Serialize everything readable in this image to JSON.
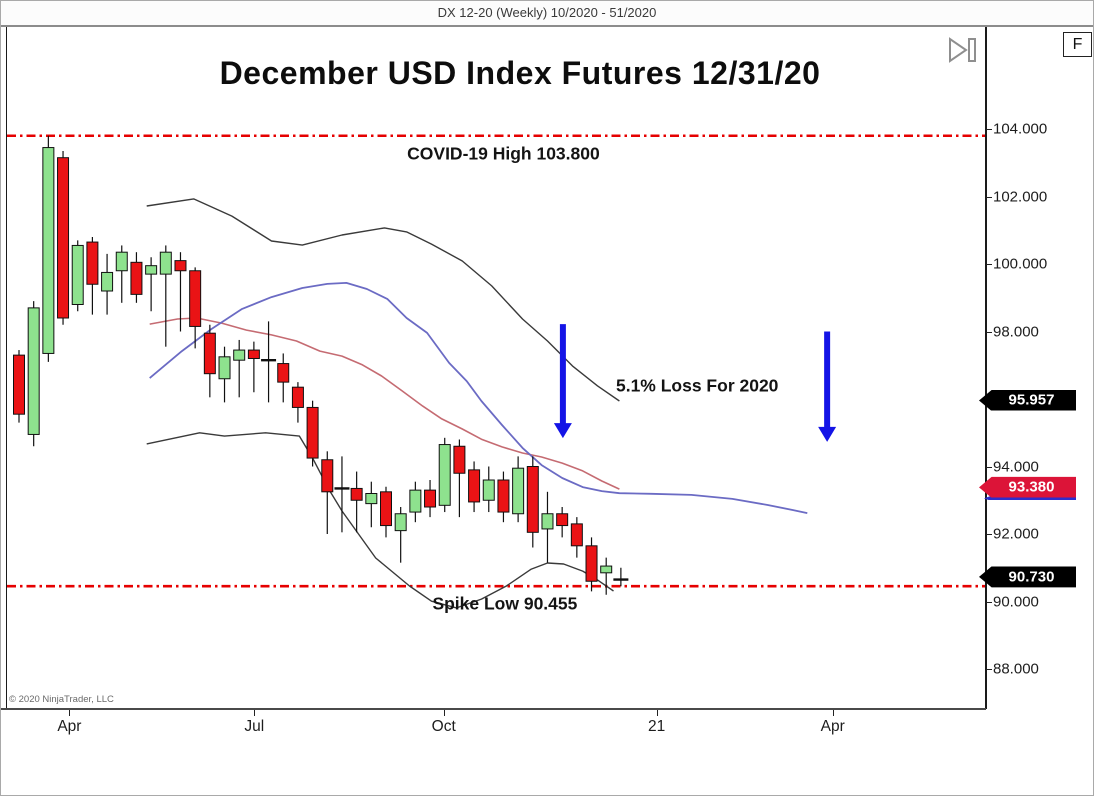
{
  "window_header": "DX 12-20 (Weekly)  10/2020 - 51/2020",
  "toolbar": {
    "f_button_label": "F",
    "step_icon": "play-step-icon"
  },
  "copyright": "© 2020 NinjaTrader, LLC",
  "colors": {
    "candle_up": "#8ee28e",
    "candle_down": "#ea1315",
    "candle_border": "#101010",
    "band_line": "#3a3a3a",
    "sma_fast": "#c56b72",
    "sma_slow": "#6b6bc4",
    "alert_line": "#e60000",
    "arrow": "#1414e6",
    "badge_black": "#000000",
    "badge_red": "#dc1438",
    "badge_text": "#ffffff",
    "badge_blue_underline": "#2d2dcc"
  },
  "chart_data": {
    "type": "candlestick",
    "title": "December USD Index Futures 12/31/20",
    "instrument": "DX 12-20 (Weekly)  10/2020 - 51/2020",
    "y_axis": {
      "unit_label_format": "0.000",
      "visible_ticks": [
        {
          "label": "104.000",
          "price": 104.0
        },
        {
          "label": "102.000",
          "price": 102.0
        },
        {
          "label": "100.000",
          "price": 100.0
        },
        {
          "label": "98.000",
          "price": 98.0
        },
        {
          "label": "94.000",
          "price": 94.0
        },
        {
          "label": "92.000",
          "price": 92.0
        },
        {
          "label": "90.000",
          "price": 90.0
        },
        {
          "label": "88.000",
          "price": 88.0
        }
      ],
      "range": [
        86.5,
        107.0
      ]
    },
    "x_axis": {
      "visible_ticks": [
        {
          "label": "Apr",
          "week": 3.5
        },
        {
          "label": "Jul",
          "week": 16.1
        },
        {
          "label": "Oct",
          "week": 29.0
        },
        {
          "label": "21",
          "week": 43.5
        },
        {
          "label": "Apr",
          "week": 55.5
        }
      ]
    },
    "price_badges": [
      {
        "label": "95.957",
        "price": 95.957,
        "bg": "#000000",
        "fg": "#ffffff",
        "underline": null
      },
      {
        "label": "93.380",
        "price": 93.38,
        "bg": "#dc1438",
        "fg": "#ffffff",
        "underline": "#2d2dcc"
      },
      {
        "label": "90.730",
        "price": 90.73,
        "bg": "#000000",
        "fg": "#ffffff",
        "underline": null
      }
    ],
    "horizontal_lines": [
      {
        "price": 103.8,
        "style": "dash-dot",
        "color": "#e60000",
        "meaning": "COVID-19 High"
      },
      {
        "price": 90.455,
        "style": "dash-dot",
        "color": "#e60000",
        "meaning": "Spike Low"
      }
    ],
    "annotations": [
      {
        "text": "COVID-19 High 103.800",
        "week": 33.0,
        "price": 103.26
      },
      {
        "text": "5.1% Loss For 2020",
        "week": 46.2,
        "price": 96.39
      },
      {
        "text": "Spike Low 90.455",
        "week": 33.1,
        "price": 89.92
      }
    ],
    "arrows": [
      {
        "week": 37.05,
        "price_from": 98.22,
        "price_to": 94.84,
        "direction": "down"
      },
      {
        "week": 55.05,
        "price_from": 98.0,
        "price_to": 94.73,
        "direction": "down"
      }
    ],
    "candles_ohlc": [
      [
        97.3,
        97.45,
        95.3,
        95.55
      ],
      [
        94.95,
        98.9,
        94.6,
        98.7
      ],
      [
        97.35,
        103.8,
        97.1,
        103.45
      ],
      [
        103.15,
        103.35,
        98.2,
        98.4
      ],
      [
        98.8,
        100.7,
        98.6,
        100.55
      ],
      [
        100.65,
        100.8,
        98.5,
        99.4
      ],
      [
        99.2,
        100.3,
        98.5,
        99.75
      ],
      [
        99.8,
        100.55,
        98.85,
        100.35
      ],
      [
        100.05,
        100.35,
        98.85,
        99.1
      ],
      [
        99.7,
        100.2,
        98.6,
        99.95
      ],
      [
        99.7,
        100.55,
        97.55,
        100.35
      ],
      [
        100.1,
        100.35,
        98.0,
        99.8
      ],
      [
        99.8,
        99.9,
        97.5,
        98.15
      ],
      [
        97.95,
        98.2,
        96.05,
        96.75
      ],
      [
        96.6,
        97.55,
        95.9,
        97.25
      ],
      [
        97.15,
        97.75,
        96.05,
        97.45
      ],
      [
        97.45,
        97.7,
        96.2,
        97.2
      ],
      [
        97.15,
        98.3,
        95.9,
        97.15
      ],
      [
        97.05,
        97.35,
        95.9,
        96.5
      ],
      [
        96.35,
        96.5,
        95.3,
        95.75
      ],
      [
        95.75,
        95.95,
        94.0,
        94.25
      ],
      [
        94.2,
        94.45,
        92.0,
        93.25
      ],
      [
        93.35,
        94.3,
        92.05,
        93.3
      ],
      [
        93.35,
        93.85,
        92.05,
        93.0
      ],
      [
        92.9,
        93.55,
        92.2,
        93.2
      ],
      [
        93.25,
        93.4,
        91.9,
        92.25
      ],
      [
        92.1,
        92.8,
        91.15,
        92.6
      ],
      [
        92.65,
        93.55,
        92.35,
        93.3
      ],
      [
        93.3,
        93.6,
        92.5,
        92.8
      ],
      [
        92.85,
        94.85,
        92.65,
        94.65
      ],
      [
        94.6,
        94.8,
        92.5,
        93.8
      ],
      [
        93.9,
        94.15,
        92.65,
        92.95
      ],
      [
        93.0,
        94.0,
        92.65,
        93.6
      ],
      [
        93.6,
        93.85,
        92.35,
        92.65
      ],
      [
        92.6,
        94.3,
        92.35,
        93.95
      ],
      [
        94.0,
        94.3,
        91.6,
        92.05
      ],
      [
        92.15,
        93.25,
        91.15,
        92.6
      ],
      [
        92.6,
        92.8,
        91.9,
        92.25
      ],
      [
        92.3,
        92.5,
        91.3,
        91.65
      ],
      [
        91.65,
        91.9,
        90.3,
        90.6
      ],
      [
        90.85,
        91.3,
        90.2,
        91.05
      ],
      [
        90.65,
        91.0,
        90.45,
        90.65
      ]
    ],
    "overlay_lines": [
      {
        "name": "upper-band",
        "color": "#3a3a3a",
        "width": 1.4,
        "points": [
          [
            8.7,
            101.72
          ],
          [
            11.9,
            101.93
          ],
          [
            14.5,
            101.42
          ],
          [
            17.2,
            100.68
          ],
          [
            19.3,
            100.56
          ],
          [
            22.0,
            100.86
          ],
          [
            24.9,
            101.07
          ],
          [
            26.4,
            100.95
          ],
          [
            28.1,
            100.59
          ],
          [
            30.2,
            100.09
          ],
          [
            32.2,
            99.35
          ],
          [
            34.3,
            98.37
          ],
          [
            36.0,
            97.72
          ],
          [
            37.7,
            96.98
          ],
          [
            39.4,
            96.39
          ],
          [
            40.9,
            95.94
          ]
        ]
      },
      {
        "name": "lower-band",
        "color": "#3a3a3a",
        "width": 1.4,
        "points": [
          [
            8.7,
            94.67
          ],
          [
            12.3,
            95.0
          ],
          [
            14.0,
            94.9
          ],
          [
            16.8,
            95.0
          ],
          [
            19.1,
            94.9
          ],
          [
            20.0,
            94.25
          ],
          [
            21.1,
            93.33
          ],
          [
            22.0,
            92.68
          ],
          [
            24.3,
            91.29
          ],
          [
            26.6,
            90.46
          ],
          [
            28.1,
            90.01
          ],
          [
            29.8,
            89.81
          ],
          [
            31.5,
            90.07
          ],
          [
            33.2,
            90.46
          ],
          [
            34.9,
            90.96
          ],
          [
            36.0,
            91.14
          ],
          [
            37.1,
            91.11
          ],
          [
            38.4,
            90.9
          ],
          [
            39.5,
            90.61
          ],
          [
            40.5,
            90.31
          ]
        ]
      },
      {
        "name": "sma-fast",
        "color": "#c56b72",
        "width": 1.6,
        "points": [
          [
            8.9,
            98.22
          ],
          [
            10.8,
            98.37
          ],
          [
            12.1,
            98.4
          ],
          [
            13.8,
            98.25
          ],
          [
            15.5,
            98.04
          ],
          [
            17.2,
            97.9
          ],
          [
            18.9,
            97.72
          ],
          [
            20.5,
            97.42
          ],
          [
            22.0,
            97.27
          ],
          [
            23.4,
            97.01
          ],
          [
            24.7,
            96.68
          ],
          [
            26.1,
            96.24
          ],
          [
            27.5,
            95.79
          ],
          [
            28.8,
            95.41
          ],
          [
            30.2,
            95.11
          ],
          [
            31.5,
            94.81
          ],
          [
            32.9,
            94.58
          ],
          [
            34.3,
            94.4
          ],
          [
            35.6,
            94.28
          ],
          [
            37.0,
            94.1
          ],
          [
            38.4,
            93.87
          ],
          [
            39.7,
            93.57
          ],
          [
            40.9,
            93.33
          ]
        ]
      },
      {
        "name": "sma-slow",
        "color": "#6b6bc4",
        "width": 1.8,
        "points": [
          [
            8.9,
            96.62
          ],
          [
            11.1,
            97.42
          ],
          [
            13.1,
            98.07
          ],
          [
            15.2,
            98.67
          ],
          [
            17.2,
            99.02
          ],
          [
            19.3,
            99.29
          ],
          [
            21.0,
            99.41
          ],
          [
            22.3,
            99.44
          ],
          [
            23.7,
            99.26
          ],
          [
            25.1,
            98.96
          ],
          [
            26.4,
            98.4
          ],
          [
            27.8,
            97.96
          ],
          [
            29.3,
            97.07
          ],
          [
            30.5,
            96.53
          ],
          [
            31.5,
            95.94
          ],
          [
            32.9,
            95.23
          ],
          [
            34.3,
            94.55
          ],
          [
            35.6,
            94.04
          ],
          [
            37.0,
            93.66
          ],
          [
            38.4,
            93.39
          ],
          [
            39.7,
            93.27
          ],
          [
            40.9,
            93.21
          ],
          [
            43.1,
            93.19
          ],
          [
            45.8,
            93.16
          ],
          [
            48.6,
            93.04
          ],
          [
            51.0,
            92.86
          ],
          [
            52.7,
            92.71
          ],
          [
            53.7,
            92.62
          ]
        ]
      }
    ]
  }
}
